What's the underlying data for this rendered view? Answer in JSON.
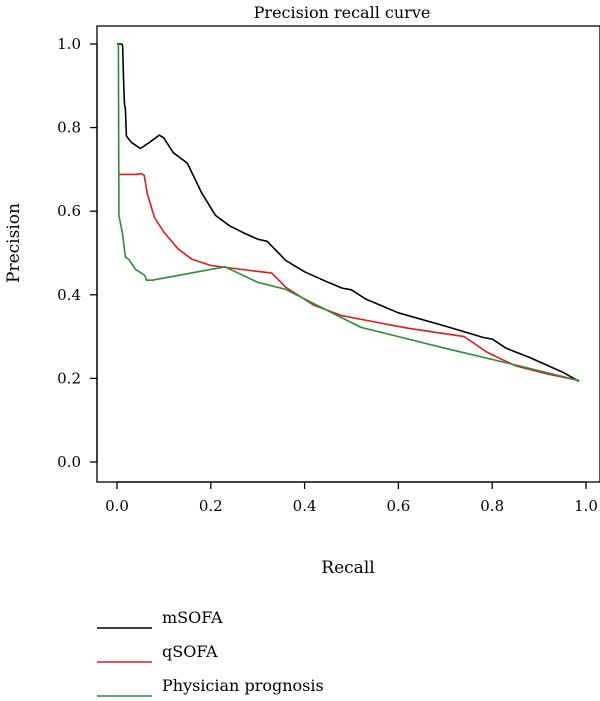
{
  "chart_data": {
    "type": "line",
    "title": "Precision recall curve",
    "xlabel": "Recall",
    "ylabel": "Precision",
    "xlim": [
      0,
      1
    ],
    "ylim": [
      0,
      1
    ],
    "x_ticks": [
      0.0,
      0.2,
      0.4,
      0.6,
      0.8,
      1.0
    ],
    "y_ticks": [
      0.0,
      0.2,
      0.4,
      0.6,
      0.8,
      1.0
    ],
    "x_tick_labels": [
      "0.0",
      "0.2",
      "0.4",
      "0.6",
      "0.8",
      "1.0"
    ],
    "y_tick_labels": [
      "0.0",
      "0.2",
      "0.4",
      "0.6",
      "0.8",
      "1.0"
    ],
    "grid": false,
    "legend_position": "bottom-left",
    "series": [
      {
        "name": "mSOFA",
        "color": "#000000",
        "points": [
          [
            0.0,
            1.0
          ],
          [
            0.01,
            1.0
          ],
          [
            0.012,
            0.997
          ],
          [
            0.014,
            0.91
          ],
          [
            0.016,
            0.855
          ],
          [
            0.018,
            0.845
          ],
          [
            0.02,
            0.78
          ],
          [
            0.03,
            0.765
          ],
          [
            0.05,
            0.75
          ],
          [
            0.07,
            0.765
          ],
          [
            0.09,
            0.782
          ],
          [
            0.1,
            0.775
          ],
          [
            0.12,
            0.74
          ],
          [
            0.15,
            0.715
          ],
          [
            0.18,
            0.645
          ],
          [
            0.21,
            0.59
          ],
          [
            0.24,
            0.565
          ],
          [
            0.27,
            0.548
          ],
          [
            0.3,
            0.533
          ],
          [
            0.32,
            0.528
          ],
          [
            0.34,
            0.505
          ],
          [
            0.36,
            0.482
          ],
          [
            0.4,
            0.455
          ],
          [
            0.45,
            0.43
          ],
          [
            0.48,
            0.416
          ],
          [
            0.5,
            0.412
          ],
          [
            0.53,
            0.39
          ],
          [
            0.6,
            0.357
          ],
          [
            0.7,
            0.325
          ],
          [
            0.76,
            0.305
          ],
          [
            0.78,
            0.298
          ],
          [
            0.8,
            0.294
          ],
          [
            0.83,
            0.272
          ],
          [
            0.88,
            0.25
          ],
          [
            0.95,
            0.215
          ],
          [
            0.985,
            0.193
          ]
        ]
      },
      {
        "name": "qSOFA",
        "color": "#e31a1c",
        "points": [
          [
            0.003,
            0.688
          ],
          [
            0.04,
            0.688
          ],
          [
            0.052,
            0.69
          ],
          [
            0.058,
            0.686
          ],
          [
            0.065,
            0.64
          ],
          [
            0.08,
            0.585
          ],
          [
            0.1,
            0.55
          ],
          [
            0.13,
            0.51
          ],
          [
            0.16,
            0.485
          ],
          [
            0.2,
            0.47
          ],
          [
            0.25,
            0.463
          ],
          [
            0.33,
            0.452
          ],
          [
            0.36,
            0.418
          ],
          [
            0.42,
            0.375
          ],
          [
            0.48,
            0.35
          ],
          [
            0.55,
            0.335
          ],
          [
            0.62,
            0.32
          ],
          [
            0.74,
            0.3
          ],
          [
            0.79,
            0.262
          ],
          [
            0.85,
            0.23
          ],
          [
            0.92,
            0.21
          ],
          [
            0.985,
            0.195
          ]
        ]
      },
      {
        "name": "Physician prognosis",
        "color": "#2e8b3a",
        "points": [
          [
            0.003,
            1.0
          ],
          [
            0.004,
            0.59
          ],
          [
            0.012,
            0.545
          ],
          [
            0.018,
            0.49
          ],
          [
            0.025,
            0.485
          ],
          [
            0.04,
            0.46
          ],
          [
            0.055,
            0.45
          ],
          [
            0.06,
            0.445
          ],
          [
            0.063,
            0.435
          ],
          [
            0.075,
            0.435
          ],
          [
            0.23,
            0.467
          ],
          [
            0.3,
            0.43
          ],
          [
            0.36,
            0.413
          ],
          [
            0.4,
            0.39
          ],
          [
            0.52,
            0.322
          ],
          [
            0.6,
            0.3
          ],
          [
            0.7,
            0.272
          ],
          [
            0.85,
            0.232
          ],
          [
            0.985,
            0.195
          ]
        ]
      }
    ]
  }
}
